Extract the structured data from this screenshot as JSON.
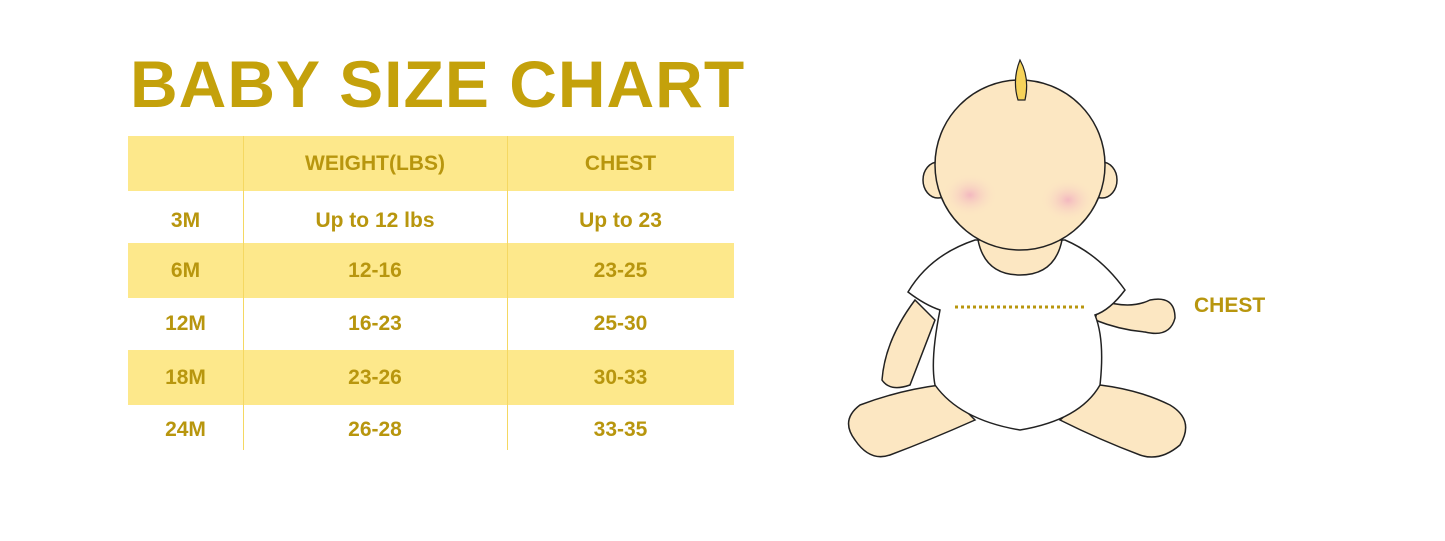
{
  "title": "BABY SIZE CHART",
  "table": {
    "headers": [
      "",
      "WEIGHT(LBS)",
      "CHEST"
    ],
    "rows": [
      [
        "3M",
        "Up to 12 lbs",
        "Up to 23"
      ],
      [
        "6M",
        "12-16",
        "23-25"
      ],
      [
        "12M",
        "16-23",
        "25-30"
      ],
      [
        "18M",
        "23-26",
        "30-33"
      ],
      [
        "24M",
        "26-28",
        "33-35"
      ]
    ]
  },
  "illustration": {
    "chest_label": "CHEST"
  },
  "colors": {
    "accent_text": "#B8960E",
    "band": "#FDE88B",
    "skin": "#FCE7C2"
  }
}
